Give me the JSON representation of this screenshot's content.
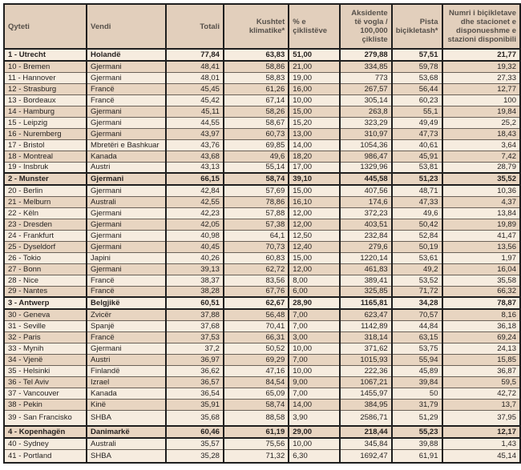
{
  "table": {
    "columns": [
      {
        "key": "city",
        "label": "Qyteti",
        "align": "left"
      },
      {
        "key": "country",
        "label": "Vendi",
        "align": "left"
      },
      {
        "key": "total",
        "label": "Totali",
        "align": "right"
      },
      {
        "key": "climate",
        "label": "Kushtet klimatike*",
        "align": "right"
      },
      {
        "key": "cyclists",
        "label": "% e çiklistëve",
        "align": "left"
      },
      {
        "key": "accidents",
        "label": "Aksidente të vogla / 100,000 çikliste",
        "align": "right"
      },
      {
        "key": "lanes",
        "label": "Pista biçikletash*",
        "align": "right"
      },
      {
        "key": "bikes",
        "label": "Numri i biçikletave dhe stacionet e disponueshme e stazioni disponibili",
        "align": "right"
      }
    ],
    "rows": [
      {
        "city": "1 - Utrecht",
        "country": "Holandë",
        "total": "77,84",
        "climate": "63,83",
        "cyclists": "51,00",
        "accidents": "279,88",
        "lanes": "57,51",
        "bikes": "21,77",
        "highlight": true
      },
      {
        "city": "10 - Bremen",
        "country": "Gjermani",
        "total": "48,41",
        "climate": "58,86",
        "cyclists": "21,00",
        "accidents": "334,85",
        "lanes": "59,78",
        "bikes": "19,32",
        "highlight": false
      },
      {
        "city": "11 - Hannover",
        "country": "Gjermani",
        "total": "48,01",
        "climate": "58,83",
        "cyclists": "19,00",
        "accidents": "773",
        "lanes": "53,68",
        "bikes": "27,33",
        "highlight": false
      },
      {
        "city": "12 - Strasburg",
        "country": "Francë",
        "total": "45,45",
        "climate": "61,26",
        "cyclists": "16,00",
        "accidents": "267,57",
        "lanes": "56,44",
        "bikes": "12,77",
        "highlight": false
      },
      {
        "city": "13 - Bordeaux",
        "country": "Francë",
        "total": "45,42",
        "climate": "67,14",
        "cyclists": "10,00",
        "accidents": "305,14",
        "lanes": "60,23",
        "bikes": "100",
        "highlight": false
      },
      {
        "city": "14 - Hamburg",
        "country": "Gjermani",
        "total": "45,11",
        "climate": "58,26",
        "cyclists": "15,00",
        "accidents": "263,8",
        "lanes": "55,1",
        "bikes": "19,84",
        "highlight": false
      },
      {
        "city": "15 - Leipzig",
        "country": "Gjermani",
        "total": "44,55",
        "climate": "58,67",
        "cyclists": "15,20",
        "accidents": "323,29",
        "lanes": "49,49",
        "bikes": "25,2",
        "highlight": false
      },
      {
        "city": "16 - Nuremberg",
        "country": "Gjermani",
        "total": "43,97",
        "climate": "60,73",
        "cyclists": "13,00",
        "accidents": "310,97",
        "lanes": "47,73",
        "bikes": "18,43",
        "highlight": false
      },
      {
        "city": "17 - Bristol",
        "country": "Mbretëri e Bashkuar",
        "total": "43,76",
        "climate": "69,85",
        "cyclists": "14,00",
        "accidents": "1054,36",
        "lanes": "40,61",
        "bikes": "3,64",
        "highlight": false
      },
      {
        "city": "18 - Montreal",
        "country": "Kanada",
        "total": "43,68",
        "climate": "49,6",
        "cyclists": "18,20",
        "accidents": "986,47",
        "lanes": "45,91",
        "bikes": "7,42",
        "highlight": false
      },
      {
        "city": "19 - Insbruk",
        "country": "Austri",
        "total": "43,13",
        "climate": "55,14",
        "cyclists": "17,00",
        "accidents": "1329,96",
        "lanes": "53,81",
        "bikes": "28,79",
        "highlight": false
      },
      {
        "city": "2 - Munster",
        "country": "Gjermani",
        "total": "66,15",
        "climate": "58,74",
        "cyclists": "39,10",
        "accidents": "445,58",
        "lanes": "51,23",
        "bikes": "35,52",
        "highlight": true
      },
      {
        "city": "20 - Berlin",
        "country": "Gjermani",
        "total": "42,84",
        "climate": "57,69",
        "cyclists": "15,00",
        "accidents": "407,56",
        "lanes": "48,71",
        "bikes": "10,36",
        "highlight": false
      },
      {
        "city": "21 - Melburn",
        "country": "Australi",
        "total": "42,55",
        "climate": "78,86",
        "cyclists": "16,10",
        "accidents": "174,6",
        "lanes": "47,33",
        "bikes": "4,37",
        "highlight": false
      },
      {
        "city": "22 - Këln",
        "country": "Gjermani",
        "total": "42,23",
        "climate": "57,88",
        "cyclists": "12,00",
        "accidents": "372,23",
        "lanes": "49,6",
        "bikes": "13,84",
        "highlight": false
      },
      {
        "city": "23 - Dresden",
        "country": "Gjermani",
        "total": "42,05",
        "climate": "57,38",
        "cyclists": "12,00",
        "accidents": "403,51",
        "lanes": "50,42",
        "bikes": "19,89",
        "highlight": false
      },
      {
        "city": "24 - Frankfurt",
        "country": "Gjermani",
        "total": "40,98",
        "climate": "64,1",
        "cyclists": "12,50",
        "accidents": "232,84",
        "lanes": "52,84",
        "bikes": "41,47",
        "highlight": false
      },
      {
        "city": "25 - Dyseldorf",
        "country": "Gjermani",
        "total": "40,45",
        "climate": "70,73",
        "cyclists": "12,40",
        "accidents": "279,6",
        "lanes": "50,19",
        "bikes": "13,56",
        "highlight": false
      },
      {
        "city": "26 - Tokio",
        "country": "Japini",
        "total": "40,26",
        "climate": "60,83",
        "cyclists": "15,00",
        "accidents": "1220,14",
        "lanes": "53,61",
        "bikes": "1,97",
        "highlight": false
      },
      {
        "city": "27 - Bonn",
        "country": "Gjermani",
        "total": "39,13",
        "climate": "62,72",
        "cyclists": "12,00",
        "accidents": "461,83",
        "lanes": "49,2",
        "bikes": "16,04",
        "highlight": false
      },
      {
        "city": "28 - Nice",
        "country": "Francë",
        "total": "38,37",
        "climate": "83,56",
        "cyclists": "8,00",
        "accidents": "389,41",
        "lanes": "53,52",
        "bikes": "35,58",
        "highlight": false
      },
      {
        "city": "29 - Nantes",
        "country": "Francë",
        "total": "38,28",
        "climate": "67,76",
        "cyclists": "6,00",
        "accidents": "325,85",
        "lanes": "71,72",
        "bikes": "66,32",
        "highlight": false
      },
      {
        "city": "3 - Antwerp",
        "country": "Belgjikë",
        "total": "60,51",
        "climate": "62,67",
        "cyclists": "28,90",
        "accidents": "1165,81",
        "lanes": "34,28",
        "bikes": "78,87",
        "highlight": true
      },
      {
        "city": "30 - Geneva",
        "country": "Zvicër",
        "total": "37,88",
        "climate": "56,48",
        "cyclists": "7,00",
        "accidents": "623,47",
        "lanes": "70,57",
        "bikes": "8,16",
        "highlight": false
      },
      {
        "city": "31 - Seville",
        "country": "Spanjë",
        "total": "37,68",
        "climate": "70,41",
        "cyclists": "7,00",
        "accidents": "1142,89",
        "lanes": "44,84",
        "bikes": "36,18",
        "highlight": false
      },
      {
        "city": "32 - Paris",
        "country": "Francë",
        "total": "37,53",
        "climate": "66,31",
        "cyclists": "3,00",
        "accidents": "318,14",
        "lanes": "63,15",
        "bikes": "69,24",
        "highlight": false
      },
      {
        "city": "33 - Mynih",
        "country": "Gjermani",
        "total": "37,2",
        "climate": "50,52",
        "cyclists": "10,00",
        "accidents": "371,62",
        "lanes": "53,75",
        "bikes": "24,13",
        "highlight": false
      },
      {
        "city": "34 - Vjenë",
        "country": "Austri",
        "total": "36,97",
        "climate": "69,29",
        "cyclists": "7,00",
        "accidents": "1015,93",
        "lanes": "55,94",
        "bikes": "15,85",
        "highlight": false
      },
      {
        "city": "35 - Helsinki",
        "country": "Finlandë",
        "total": "36,62",
        "climate": "47,16",
        "cyclists": "10,00",
        "accidents": "222,36",
        "lanes": "45,89",
        "bikes": "36,87",
        "highlight": false
      },
      {
        "city": "36 - Tel Aviv",
        "country": "Izrael",
        "total": "36,57",
        "climate": "84,54",
        "cyclists": "9,00",
        "accidents": "1067,21",
        "lanes": "39,84",
        "bikes": "59,5",
        "highlight": false
      },
      {
        "city": "37 - Vancouver",
        "country": "Kanada",
        "total": "36,54",
        "climate": "65,09",
        "cyclists": "7,00",
        "accidents": "1455,97",
        "lanes": "50",
        "bikes": "42,72",
        "highlight": false
      },
      {
        "city": "38 - Pekin",
        "country": "Kinë",
        "total": "35,91",
        "climate": "58,74",
        "cyclists": "14,00",
        "accidents": "384,95",
        "lanes": "31,79",
        "bikes": "13,7",
        "highlight": false
      },
      {
        "city": "39 - San Francisko",
        "country": "SHBA",
        "total": "35,68",
        "climate": "88,58",
        "cyclists": "3,90",
        "accidents": "2586,71",
        "lanes": "51,29",
        "bikes": "37,95",
        "highlight": false
      },
      {
        "city": "4 - Kopenhagën",
        "country": "Danimarkë",
        "total": "60,46",
        "climate": "61,19",
        "cyclists": "29,00",
        "accidents": "218,44",
        "lanes": "55,23",
        "bikes": "12,17",
        "highlight": true
      },
      {
        "city": "40 - Sydney",
        "country": "Australi",
        "total": "35,57",
        "climate": "75,56",
        "cyclists": "10,00",
        "accidents": "345,84",
        "lanes": "39,88",
        "bikes": "1,43",
        "highlight": false
      },
      {
        "city": "41 - Portland",
        "country": "SHBA",
        "total": "35,28",
        "climate": "71,32",
        "cyclists": "6,30",
        "accidents": "1692,47",
        "lanes": "61,91",
        "bikes": "45,14",
        "highlight": false
      }
    ]
  },
  "colors": {
    "row_light": "#f6ecdf",
    "row_dark": "#e8d5c1",
    "header_bg": "#e2cfbc",
    "border": "#1f1f1f",
    "grid_line": "#6b6259",
    "text": "#262220",
    "header_text": "#56504a"
  }
}
